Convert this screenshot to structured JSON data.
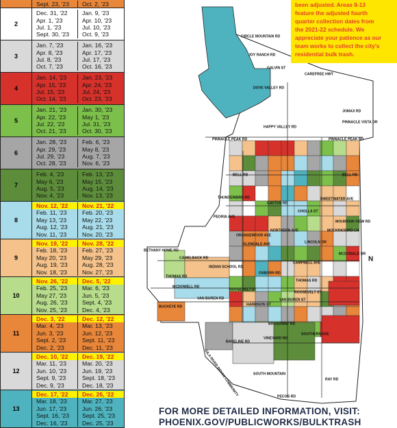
{
  "table": {
    "top_row": [
      "Sept. 23, '23",
      "Oct. 2, '23"
    ],
    "rows": [
      {
        "area": "2",
        "dates": [
          [
            "Dec. 31, '22",
            "Jan. 9, '23"
          ],
          [
            "Apr. 1, '23",
            "Apr. 10, '23"
          ],
          [
            "Jul. 1, '23",
            "Jul. 10, '23"
          ],
          [
            "Sept. 30, '23",
            "Oct. 9, '23"
          ]
        ]
      },
      {
        "area": "3",
        "dates": [
          [
            "Jan. 7, '23",
            "Jan. 16, '23"
          ],
          [
            "Apr. 8, '23",
            "Apr. 17, '23"
          ],
          [
            "Jul. 8, '23",
            "Jul. 17, '23"
          ],
          [
            "Oct. 7, '23",
            "Oct. 16, '23"
          ]
        ]
      },
      {
        "area": "4",
        "dates": [
          [
            "Jan. 14, '23",
            "Jan. 23, '23"
          ],
          [
            "Apr. 15, '23",
            "Apr. 24, '23"
          ],
          [
            "Jul. 15, '23",
            "Jul. 24, '23"
          ],
          [
            "Oct. 14, '23",
            "Oct. 23, '23"
          ]
        ]
      },
      {
        "area": "5",
        "dates": [
          [
            "Jan. 21, '23",
            "Jan. 30, '23"
          ],
          [
            "Apr. 22, '23",
            "May 1, '23"
          ],
          [
            "Jul. 22, '23",
            "Jul. 31, '23"
          ],
          [
            "Oct. 21, '23",
            "Oct. 30, '23"
          ]
        ]
      },
      {
        "area": "6",
        "dates": [
          [
            "Jan. 28, '23",
            "Feb. 6, '23"
          ],
          [
            "Apr. 29, '23",
            "May 8, '23"
          ],
          [
            "Jul. 29, '23",
            "Aug. 7, '23"
          ],
          [
            "Oct. 28, '23",
            "Nov. 6, '23"
          ]
        ]
      },
      {
        "area": "7",
        "dates": [
          [
            "Feb. 4, '23",
            "Feb. 13, '23"
          ],
          [
            "May 6, '23",
            "May 15, '23"
          ],
          [
            "Aug. 5, '23",
            "Aug. 14, '23"
          ],
          [
            "Nov. 4, '23",
            "Nov. 13, '23"
          ]
        ]
      },
      {
        "area": "8",
        "dates": [
          [
            "Nov. 12, '22",
            "Nov. 21, '22"
          ],
          [
            "Feb. 11, '23",
            "Feb. 20, '23"
          ],
          [
            "May 13, '23",
            "May 22, '23"
          ],
          [
            "Aug. 12, '23",
            "Aug. 21, '23"
          ],
          [
            "Nov. 11, '23",
            "Nov. 20, '23"
          ]
        ]
      },
      {
        "area": "9",
        "dates": [
          [
            "Nov. 19, '22",
            "Nov. 28, '22"
          ],
          [
            "Feb. 18, '23",
            "Feb. 27, '23"
          ],
          [
            "May 20, '23",
            "May 29, '23"
          ],
          [
            "Aug. 19, '23",
            "Aug. 28, '23"
          ],
          [
            "Nov. 18, '23",
            "Nov. 27, '23"
          ]
        ]
      },
      {
        "area": "10",
        "dates": [
          [
            "Nov. 26, '22",
            "Dec. 5, '22"
          ],
          [
            "Feb. 25, '23",
            "Mar. 6, '23"
          ],
          [
            "May 27, '23",
            "Jun. 5, '23"
          ],
          [
            "Aug. 26, '23",
            "Sept. 4, '23"
          ],
          [
            "Nov. 25, '23",
            "Dec. 4, '23"
          ]
        ]
      },
      {
        "area": "11",
        "dates": [
          [
            "Dec. 3, '22",
            "Dec. 12, '22"
          ],
          [
            "Mar. 4, '23",
            "Mar. 13, '23"
          ],
          [
            "Jun. 3, '23",
            "Jun. 12, '23"
          ],
          [
            "Sept. 2, '23",
            "Sept. 11, '23"
          ],
          [
            "Dec. 2, '23",
            "Dec. 11, '23"
          ]
        ]
      },
      {
        "area": "12",
        "dates": [
          [
            "Dec. 10, '22",
            "Dec. 19, '22"
          ],
          [
            "Mar. 11, '23",
            "Mar. 20, '23"
          ],
          [
            "Jun. 10, '23",
            "Jun. 19, '23"
          ],
          [
            "Sept. 9, '23",
            "Sept. 18, '23"
          ],
          [
            "Dec. 9, '23",
            "Dec. 18, '23"
          ]
        ]
      },
      {
        "area": "13",
        "dates": [
          [
            "Dec. 17, '22",
            "Dec. 26, '22"
          ],
          [
            "Mar. 18, '23",
            "Mar. 27, '23"
          ],
          [
            "Jun. 17, '23",
            "Jun. 26, '23"
          ],
          [
            "Sept. 16, '23",
            "Sept. 25, '23"
          ],
          [
            "Dec. 16, '23",
            "Dec. 25, '23"
          ]
        ]
      }
    ]
  },
  "notice": [
    "been adjusted. Areas 8-13",
    "feature the adjusted fourth",
    "quarter collection dates from",
    "the 2021-22 schedule. We",
    "appreciate your patience as our",
    "team works to collect the city's",
    "residential bulk trash."
  ],
  "map": {
    "labels": [
      "CIRCLE MOUNTAIN RD",
      "JOY RANCH RD",
      "GALVIN ST",
      "CAREFREE HWY",
      "DOVE VALLEY RD",
      "JOMAX RD",
      "PINNACLE VISTA DR",
      "HAPPY VALLEY RD",
      "PINNACLE PEAK RD",
      "PINNACLE PEAK RD",
      "BELL RD",
      "BELL RD",
      "THUNDERBIRD RD",
      "CACTUS RD",
      "PEORIA AVE",
      "SWEETWATER AVE",
      "CHOLLA ST",
      "MOUNTAIN VIEW RD",
      "MOCKINGBIRD LN",
      "NORTHERN AVE",
      "ORANGEWOOD AVE",
      "GLENDALE AVE",
      "LINCOLN DR",
      "BETHANY HOME RD",
      "CAMPBELL AVE",
      "CAMELBACK RD",
      "INDIAN SCHOOL RD",
      "MCDONALD DR",
      "OSBORN RD",
      "THOMAS RD",
      "THOMAS RD",
      "MCDOWELL RD",
      "ROOSEVELT ST",
      "ROOSEVELT ST",
      "VAN BUREN RD",
      "VAN BUREN ST",
      "BUCKEYE RD",
      "HARRISON ST",
      "BROADWAY RD",
      "SOUTHERN AVE",
      "VINEYARD RD",
      "BASELINE RD",
      "SOUTH MOUNTAIN",
      "RAY RD",
      "PECOS RD",
      "GILA RIVER INDIAN COMMUNITY",
      "N"
    ]
  },
  "footer": [
    "FOR MORE DETAILED INFORMATION, VISIT:",
    "PHOENIX.GOV/PUBLICWORKS/BULKTRASH"
  ]
}
